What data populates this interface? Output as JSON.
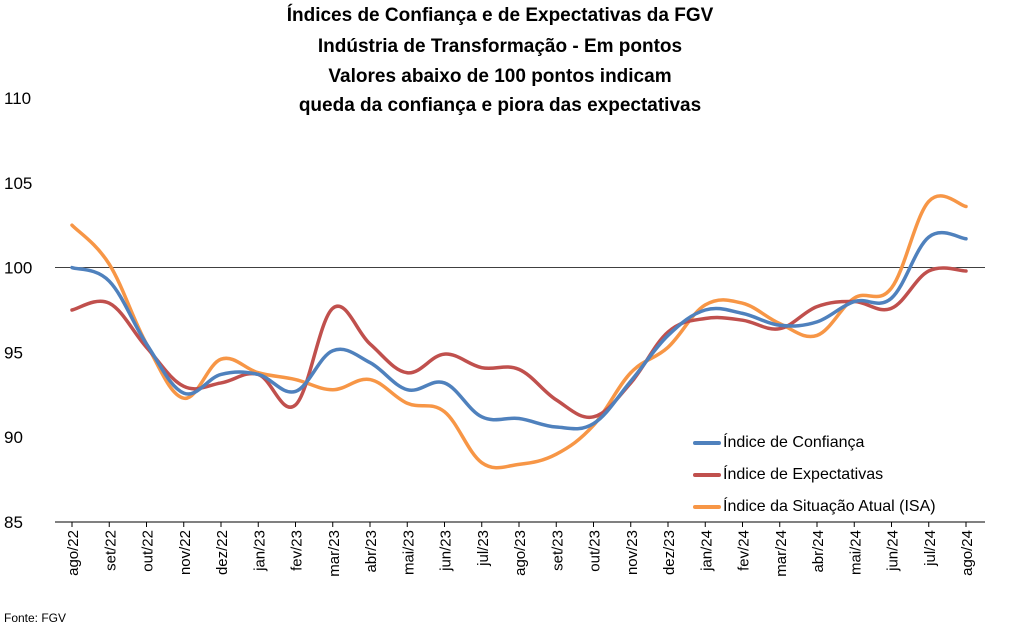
{
  "chart_data": {
    "type": "line",
    "title": [
      "Índices de Confiança e de Expectativas da FGV",
      "Indústria de Transformação - Em pontos",
      "Valores abaixo de 100 pontos indicam",
      "queda da confiança e piora das expectativas"
    ],
    "categories": [
      "ago/22",
      "set/22",
      "out/22",
      "nov/22",
      "dez/22",
      "jan/23",
      "fev/23",
      "mar/23",
      "abr/23",
      "mai/23",
      "jun/23",
      "jul/23",
      "ago/23",
      "set/23",
      "out/23",
      "nov/23",
      "dez/23",
      "jan/24",
      "fev/24",
      "mar/24",
      "abr/24",
      "mai/24",
      "jun/24",
      "jul/24",
      "ago/24"
    ],
    "y_ticks": [
      "85",
      "90",
      "95",
      "100",
      "105",
      "110"
    ],
    "ylim": [
      85,
      110
    ],
    "reference_line": 100,
    "legend_position": "bottom-right",
    "series": [
      {
        "name": "Índice de Confiança",
        "color": "#4f81bd",
        "values": [
          100.0,
          99.2,
          95.5,
          92.6,
          93.7,
          93.7,
          92.7,
          95.1,
          94.4,
          92.8,
          93.2,
          91.2,
          91.1,
          90.6,
          90.8,
          93.3,
          96.0,
          97.5,
          97.3,
          96.6,
          96.8,
          98.0,
          98.2,
          101.8,
          101.7
        ]
      },
      {
        "name": "Índice de Expectativas",
        "color": "#c0504d",
        "values": [
          97.5,
          97.9,
          95.3,
          93.0,
          93.2,
          93.7,
          91.9,
          97.6,
          95.5,
          93.8,
          94.9,
          94.1,
          94.0,
          92.2,
          91.2,
          93.2,
          96.2,
          97.0,
          96.9,
          96.4,
          97.7,
          98.0,
          97.6,
          99.8,
          99.8
        ]
      },
      {
        "name": "Índice da Situação Atual (ISA)",
        "color": "#f79646",
        "values": [
          102.5,
          100.2,
          95.5,
          92.3,
          94.6,
          93.8,
          93.4,
          92.8,
          93.4,
          92.0,
          91.5,
          88.5,
          88.4,
          89.0,
          90.7,
          93.8,
          95.3,
          97.8,
          97.9,
          96.7,
          96.0,
          98.2,
          98.8,
          103.9,
          103.6
        ]
      }
    ]
  },
  "source": "Fonte: FGV"
}
